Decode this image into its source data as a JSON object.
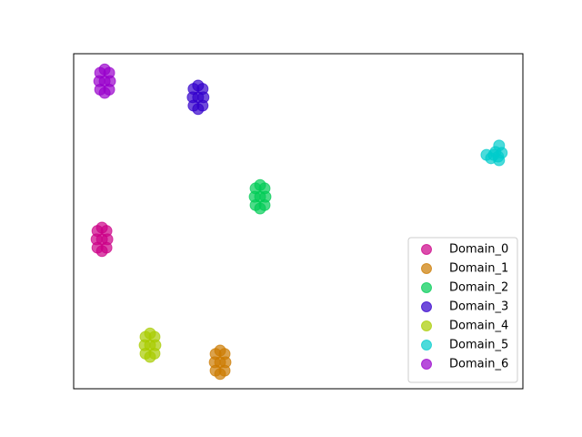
{
  "chart_data": {
    "type": "scatter",
    "xlim": [
      0,
      100
    ],
    "ylim": [
      0,
      100
    ],
    "legend": "lower right",
    "alpha": 0.7,
    "series": [
      {
        "name": "Domain_0",
        "color": "#cc0088",
        "x": [
          6.3,
          5.3,
          7.3,
          5.3,
          7.3,
          6.3,
          6.3,
          5.1,
          7.5
        ],
        "values": [
          44.6,
          47.1,
          47.1,
          42.1,
          42.1,
          48.1,
          41.1,
          44.6,
          44.6
        ]
      },
      {
        "name": "Domain_1",
        "color": "#cc7a00",
        "x": [
          32.6,
          31.6,
          33.6,
          31.6,
          33.6,
          32.6,
          32.6,
          31.4,
          33.8
        ],
        "values": [
          7.9,
          10.4,
          10.4,
          5.4,
          5.4,
          11.4,
          4.4,
          7.9,
          7.9
        ]
      },
      {
        "name": "Domain_2",
        "color": "#00cc55",
        "x": [
          41.5,
          40.5,
          42.5,
          40.5,
          42.5,
          41.5,
          41.5,
          40.3,
          42.7
        ],
        "values": [
          57.3,
          59.8,
          59.8,
          54.8,
          54.8,
          60.8,
          53.8,
          57.3,
          57.3
        ]
      },
      {
        "name": "Domain_3",
        "color": "#3300cc",
        "x": [
          27.7,
          26.7,
          28.7,
          26.7,
          28.7,
          27.7,
          27.7,
          26.5,
          28.9
        ],
        "values": [
          87,
          89.5,
          89.5,
          84.5,
          84.5,
          90.5,
          83.5,
          87,
          87
        ]
      },
      {
        "name": "Domain_4",
        "color": "#a8cc00",
        "x": [
          17,
          16,
          18,
          16,
          18,
          17,
          17,
          15.8,
          18.2
        ],
        "values": [
          13,
          15.5,
          15.5,
          10.5,
          10.5,
          16.5,
          9.5,
          13,
          13
        ]
      },
      {
        "name": "Domain_5",
        "color": "#00cccc",
        "x": [
          91.9,
          92.9,
          93.9,
          94.7,
          95.3,
          94.7,
          93.5,
          94.5
        ],
        "values": [
          69.8,
          68.8,
          70.7,
          72.6,
          70.4,
          68.2,
          69.8,
          69.3
        ]
      },
      {
        "name": "Domain_6",
        "color": "#9900cc",
        "x": [
          6.9,
          5.9,
          7.9,
          5.9,
          7.9,
          6.9,
          6.9,
          5.7,
          8.1
        ],
        "values": [
          91.8,
          94.3,
          94.3,
          89.3,
          89.3,
          95.3,
          88.3,
          91.8,
          91.8
        ]
      }
    ]
  }
}
